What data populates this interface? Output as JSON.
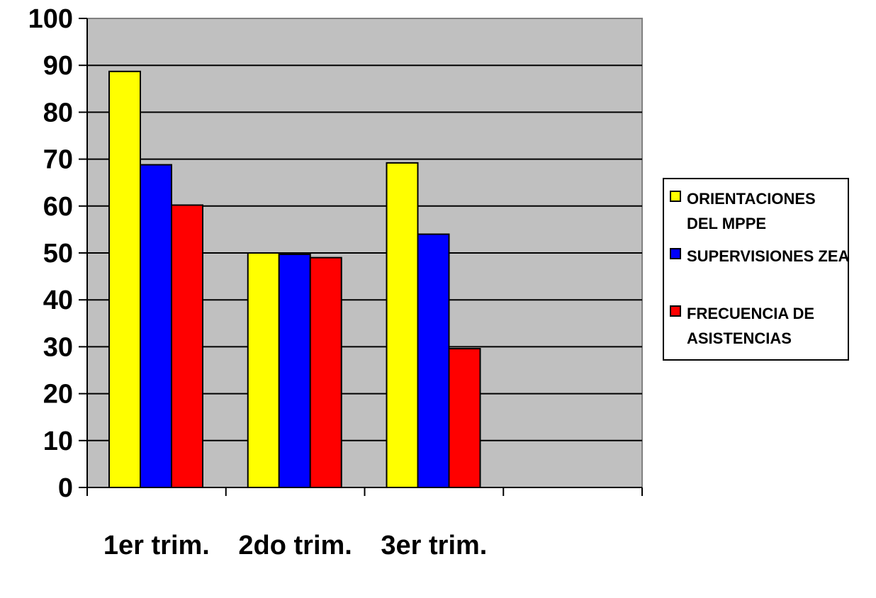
{
  "chart_data": {
    "type": "bar",
    "categories": [
      "1er trim.",
      "2do trim.",
      "3er trim.",
      ""
    ],
    "series": [
      {
        "name": "ORIENTACIONES DEL MPPE",
        "color": "#ffff00",
        "values": [
          88.7,
          50,
          69.2,
          null
        ]
      },
      {
        "name": "SUPERVISIONES ZEA",
        "color": "#0000ff",
        "values": [
          68.8,
          49.7,
          54,
          null
        ]
      },
      {
        "name": "FRECUENCIA DE ASISTENCIAS",
        "color": "#ff0000",
        "values": [
          60.2,
          49,
          29.6,
          null
        ]
      }
    ],
    "ylim": [
      0,
      100
    ],
    "yticks": [
      0,
      10,
      20,
      30,
      40,
      50,
      60,
      70,
      80,
      90,
      100
    ],
    "grid": true,
    "plot_background": "#c0c0c0",
    "legend_position": "right"
  }
}
